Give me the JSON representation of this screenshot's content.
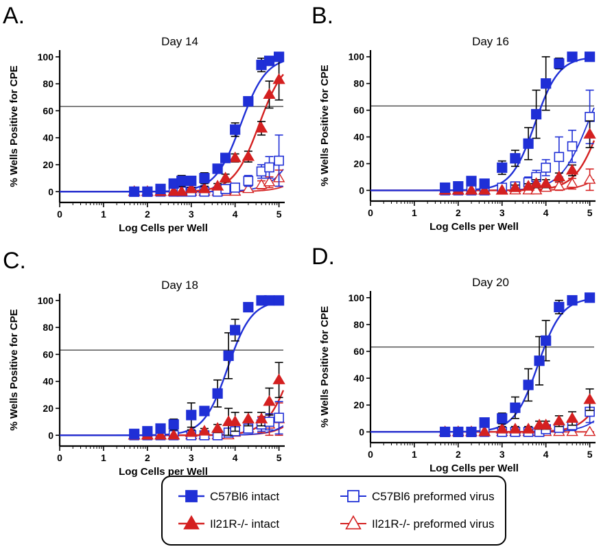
{
  "chart_data": [
    {
      "type": "scatter",
      "panel_label": "A.",
      "title": "Day 14",
      "xlabel": "Log Cells per Well",
      "ylabel": "% Wells Positive for CPE",
      "xlim": [
        0,
        5.1
      ],
      "ylim": [
        -8,
        105
      ],
      "xticks": [
        0,
        1,
        2,
        3,
        4,
        5
      ],
      "yticks": [
        0,
        20,
        40,
        60,
        80,
        100
      ],
      "reference_line_y": 63.2,
      "series": [
        {
          "key": "c57_intact",
          "x": [
            1.7,
            2.0,
            2.3,
            2.6,
            2.78,
            3.0,
            3.3,
            3.6,
            3.78,
            4.0,
            4.3,
            4.6,
            4.78,
            5.0
          ],
          "y": [
            0,
            0,
            2,
            6,
            8,
            8,
            10,
            17,
            25,
            46,
            67,
            94,
            97,
            100
          ],
          "err": [
            0,
            0,
            2,
            3,
            4,
            3,
            4,
            3,
            3,
            5,
            3,
            5,
            3,
            2
          ],
          "fit": {
            "ec50": 4.13,
            "slope": 1.5,
            "top": 100
          }
        },
        {
          "key": "il21r_intact",
          "x": [
            1.7,
            2.0,
            2.3,
            2.6,
            2.78,
            3.0,
            3.3,
            3.6,
            3.78,
            4.0,
            4.3,
            4.6,
            4.78,
            5.0
          ],
          "y": [
            0,
            0,
            0,
            0,
            0,
            2,
            2,
            4,
            10,
            25,
            26,
            47,
            72,
            83
          ],
          "err": [
            0,
            0,
            0,
            0,
            0,
            1,
            2,
            2,
            3,
            3,
            4,
            5,
            10,
            15
          ],
          "fit": {
            "ec50": 4.55,
            "slope": 1.5,
            "top": 100
          }
        },
        {
          "key": "c57_preformed",
          "x": [
            1.7,
            2.0,
            2.3,
            2.6,
            2.78,
            3.0,
            3.3,
            3.6,
            3.78,
            4.0,
            4.3,
            4.6,
            4.78,
            5.0
          ],
          "y": [
            0,
            0,
            0,
            0,
            0,
            0,
            0,
            0,
            2,
            3,
            8,
            15,
            18,
            23
          ],
          "err": [
            0,
            0,
            0,
            0,
            0,
            0,
            0,
            0,
            2,
            2,
            4,
            5,
            8,
            19
          ],
          "fit": {
            "ec50": 5.6,
            "slope": 1.4,
            "top": 100
          }
        },
        {
          "key": "il21r_preformed",
          "x": [
            1.7,
            2.0,
            2.3,
            2.6,
            2.78,
            3.0,
            3.3,
            3.6,
            3.78,
            4.0,
            4.3,
            4.6,
            4.78,
            5.0
          ],
          "y": [
            0,
            0,
            0,
            0,
            0,
            0,
            0,
            0,
            0,
            0,
            2,
            5,
            7,
            10
          ],
          "err": [
            0,
            0,
            0,
            0,
            0,
            0,
            0,
            0,
            0,
            0,
            2,
            3,
            4,
            6
          ],
          "fit": {
            "ec50": 6.1,
            "slope": 1.4,
            "top": 100
          }
        }
      ]
    },
    {
      "type": "scatter",
      "panel_label": "B.",
      "title": "Day 16",
      "xlabel": "Log Cells per Well",
      "ylabel": "% Wells Positive for CPE",
      "xlim": [
        0,
        5.1
      ],
      "ylim": [
        -8,
        105
      ],
      "xticks": [
        0,
        1,
        2,
        3,
        4,
        5
      ],
      "yticks": [
        0,
        20,
        40,
        60,
        80,
        100
      ],
      "reference_line_y": 63.2,
      "series": [
        {
          "key": "c57_intact",
          "x": [
            1.7,
            2.0,
            2.3,
            2.6,
            3.0,
            3.3,
            3.6,
            3.78,
            4.0,
            4.3,
            4.6,
            5.0
          ],
          "y": [
            2,
            3,
            7,
            5,
            17,
            24,
            35,
            57,
            80,
            95,
            100,
            100
          ],
          "err": [
            2,
            2,
            3,
            3,
            5,
            6,
            12,
            18,
            20,
            4,
            0,
            0
          ],
          "fit": {
            "ec50": 3.75,
            "slope": 1.6,
            "top": 100
          }
        },
        {
          "key": "il21r_intact",
          "x": [
            1.7,
            2.0,
            2.3,
            2.6,
            3.0,
            3.3,
            3.6,
            3.78,
            4.0,
            4.3,
            4.6,
            5.0
          ],
          "y": [
            0,
            0,
            0,
            0,
            0,
            2,
            3,
            5,
            5,
            10,
            15,
            42
          ],
          "err": [
            0,
            0,
            0,
            0,
            0,
            2,
            2,
            3,
            3,
            3,
            4,
            10
          ],
          "fit": {
            "ec50": 5.25,
            "slope": 1.5,
            "top": 100
          }
        },
        {
          "key": "c57_preformed",
          "x": [
            1.7,
            2.0,
            2.3,
            2.6,
            3.0,
            3.3,
            3.6,
            3.78,
            4.0,
            4.3,
            4.6,
            5.0
          ],
          "y": [
            0,
            0,
            0,
            0,
            2,
            3,
            6,
            10,
            17,
            25,
            33,
            55
          ],
          "err": [
            0,
            0,
            0,
            0,
            2,
            3,
            4,
            5,
            6,
            15,
            12,
            20
          ],
          "fit": {
            "ec50": 4.95,
            "slope": 1.4,
            "top": 100
          }
        },
        {
          "key": "il21r_preformed",
          "x": [
            1.7,
            2.0,
            2.3,
            2.6,
            3.0,
            3.3,
            3.6,
            3.78,
            4.0,
            4.3,
            4.6,
            5.0
          ],
          "y": [
            0,
            0,
            0,
            0,
            0,
            0,
            0,
            0,
            2,
            3,
            5,
            8
          ],
          "err": [
            0,
            0,
            0,
            0,
            0,
            0,
            0,
            0,
            2,
            3,
            4,
            8
          ],
          "fit": {
            "ec50": 5.85,
            "slope": 1.4,
            "top": 100
          }
        }
      ]
    },
    {
      "type": "scatter",
      "panel_label": "C.",
      "title": "Day 18",
      "xlabel": "Log Cells per Well",
      "ylabel": "% Wells Positive for CPE",
      "xlim": [
        0,
        5.1
      ],
      "ylim": [
        -8,
        105
      ],
      "xticks": [
        0,
        1,
        2,
        3,
        4,
        5
      ],
      "yticks": [
        0,
        20,
        40,
        60,
        80,
        100
      ],
      "reference_line_y": 63.2,
      "series": [
        {
          "key": "c57_intact",
          "x": [
            1.7,
            2.0,
            2.3,
            2.6,
            3.0,
            3.3,
            3.6,
            3.85,
            4.0,
            4.3,
            4.6,
            4.78,
            5.0
          ],
          "y": [
            1,
            3,
            5,
            8,
            15,
            18,
            31,
            59,
            78,
            95,
            100,
            100,
            100
          ],
          "err": [
            1,
            2,
            3,
            4,
            9,
            3,
            10,
            17,
            8,
            3,
            0,
            0,
            0
          ],
          "fit": {
            "ec50": 3.83,
            "slope": 1.6,
            "top": 100
          }
        },
        {
          "key": "il21r_intact",
          "x": [
            1.7,
            2.0,
            2.3,
            2.6,
            3.0,
            3.3,
            3.6,
            3.85,
            4.0,
            4.3,
            4.6,
            4.78,
            5.0
          ],
          "y": [
            0,
            0,
            0,
            0,
            2,
            3,
            5,
            10,
            10,
            12,
            12,
            25,
            41
          ],
          "err": [
            0,
            0,
            0,
            0,
            2,
            2,
            3,
            10,
            7,
            5,
            5,
            10,
            13
          ],
          "fit": {
            "ec50": 5.3,
            "slope": 1.5,
            "top": 100
          }
        },
        {
          "key": "c57_preformed",
          "x": [
            1.7,
            2.0,
            2.3,
            2.6,
            3.0,
            3.3,
            3.6,
            3.85,
            4.0,
            4.3,
            4.6,
            4.78,
            5.0
          ],
          "y": [
            0,
            0,
            0,
            0,
            0,
            0,
            0,
            2,
            3,
            5,
            8,
            10,
            13
          ],
          "err": [
            0,
            0,
            0,
            0,
            0,
            0,
            0,
            2,
            2,
            3,
            5,
            6,
            12
          ],
          "fit": {
            "ec50": 5.9,
            "slope": 1.4,
            "top": 100
          }
        },
        {
          "key": "il21r_preformed",
          "x": [
            1.7,
            2.0,
            2.3,
            2.6,
            3.0,
            3.3,
            3.6,
            3.85,
            4.0,
            4.3,
            4.6,
            4.78,
            5.0
          ],
          "y": [
            0,
            0,
            0,
            0,
            0,
            0,
            0,
            0,
            2,
            5,
            8,
            8,
            12
          ],
          "err": [
            0,
            0,
            0,
            0,
            0,
            0,
            0,
            0,
            2,
            3,
            6,
            8,
            12
          ],
          "fit": {
            "ec50": 5.95,
            "slope": 1.4,
            "top": 100
          }
        }
      ]
    },
    {
      "type": "scatter",
      "panel_label": "D.",
      "title": "Day 20",
      "xlabel": "Log Cells per Well",
      "ylabel": "% Wells Positive for CPE",
      "xlim": [
        0,
        5.1
      ],
      "ylim": [
        -8,
        105
      ],
      "xticks": [
        0,
        1,
        2,
        3,
        4,
        5
      ],
      "yticks": [
        0,
        20,
        40,
        60,
        80,
        100
      ],
      "reference_line_y": 63.2,
      "series": [
        {
          "key": "c57_intact",
          "x": [
            1.7,
            2.0,
            2.3,
            2.6,
            3.0,
            3.3,
            3.6,
            3.85,
            4.0,
            4.3,
            4.6,
            5.0
          ],
          "y": [
            0,
            0,
            0,
            7,
            10,
            18,
            35,
            53,
            68,
            93,
            98,
            100
          ],
          "err": [
            0,
            0,
            0,
            3,
            4,
            8,
            12,
            18,
            15,
            5,
            2,
            0
          ],
          "fit": {
            "ec50": 3.82,
            "slope": 1.6,
            "top": 100
          }
        },
        {
          "key": "il21r_intact",
          "x": [
            1.7,
            2.0,
            2.3,
            2.6,
            3.0,
            3.3,
            3.6,
            3.85,
            4.0,
            4.3,
            4.6,
            5.0
          ],
          "y": [
            0,
            0,
            0,
            0,
            2,
            2,
            2,
            5,
            5,
            8,
            10,
            24
          ],
          "err": [
            0,
            0,
            0,
            0,
            2,
            2,
            2,
            3,
            3,
            4,
            5,
            8
          ],
          "fit": {
            "ec50": 5.55,
            "slope": 1.5,
            "top": 100
          }
        },
        {
          "key": "c57_preformed",
          "x": [
            1.7,
            2.0,
            2.3,
            2.6,
            3.0,
            3.3,
            3.6,
            3.85,
            4.0,
            4.3,
            4.6,
            5.0
          ],
          "y": [
            0,
            0,
            0,
            0,
            0,
            0,
            0,
            0,
            2,
            3,
            5,
            15
          ],
          "err": [
            0,
            0,
            0,
            0,
            0,
            0,
            0,
            0,
            2,
            2,
            4,
            8
          ],
          "fit": {
            "ec50": 5.85,
            "slope": 1.4,
            "top": 100
          }
        },
        {
          "key": "il21r_preformed",
          "x": [
            1.7,
            2.0,
            2.3,
            2.6,
            3.0,
            3.3,
            3.6,
            3.85,
            4.0,
            4.3,
            4.6,
            5.0
          ],
          "y": [
            0,
            0,
            0,
            0,
            0,
            0,
            0,
            0,
            0,
            0,
            0,
            0
          ],
          "err": [
            0,
            0,
            0,
            0,
            0,
            0,
            0,
            0,
            0,
            0,
            0,
            0
          ],
          "fit": {
            "ec50": 7.5,
            "slope": 1.4,
            "top": 100
          }
        }
      ]
    }
  ],
  "legend": {
    "items": [
      {
        "key": "c57_intact",
        "label": "C57Bl6 intact",
        "color": "#1f2fd6",
        "marker": "square",
        "filled": true
      },
      {
        "key": "c57_preformed",
        "label": "C57Bl6 preformed virus",
        "color": "#1f2fd6",
        "marker": "square",
        "filled": false
      },
      {
        "key": "il21r_intact",
        "label": "Il21R-/- intact",
        "color": "#d42020",
        "marker": "triangle",
        "filled": true
      },
      {
        "key": "il21r_preformed",
        "label": "Il21R-/- preformed virus",
        "color": "#d42020",
        "marker": "triangle",
        "filled": false
      }
    ]
  },
  "colors": {
    "blue": "#1f2fd6",
    "red": "#d42020",
    "axis": "#000000"
  }
}
